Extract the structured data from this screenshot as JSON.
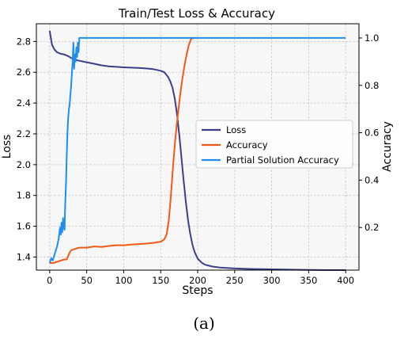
{
  "chart_data": {
    "type": "line",
    "title": "Train/Test Loss & Accuracy",
    "xlabel": "Steps",
    "ylabel": "Loss",
    "ylabel_right": "Accuracy",
    "xlim": [
      -18,
      418
    ],
    "ylim": [
      1.315,
      2.915
    ],
    "ylim_right": [
      0.02,
      1.06
    ],
    "x_ticks": [
      "0",
      "50",
      "100",
      "150",
      "200",
      "250",
      "300",
      "350",
      "400"
    ],
    "y_ticks": [
      "1.4",
      "1.6",
      "1.8",
      "2.0",
      "2.2",
      "2.4",
      "2.6",
      "2.8"
    ],
    "y_ticks_right": [
      "0.2",
      "0.4",
      "0.6",
      "0.8",
      "1.0"
    ],
    "grid": true,
    "legend_position": "center-right",
    "series": [
      {
        "name": "Loss",
        "axis": "left",
        "color": "#3b3e8c",
        "points": [
          [
            0,
            2.87
          ],
          [
            3,
            2.78
          ],
          [
            6,
            2.75
          ],
          [
            10,
            2.73
          ],
          [
            15,
            2.72
          ],
          [
            20,
            2.715
          ],
          [
            25,
            2.705
          ],
          [
            30,
            2.69
          ],
          [
            35,
            2.68
          ],
          [
            40,
            2.675
          ],
          [
            50,
            2.665
          ],
          [
            60,
            2.655
          ],
          [
            70,
            2.645
          ],
          [
            80,
            2.638
          ],
          [
            90,
            2.635
          ],
          [
            100,
            2.632
          ],
          [
            110,
            2.63
          ],
          [
            120,
            2.628
          ],
          [
            130,
            2.625
          ],
          [
            140,
            2.62
          ],
          [
            150,
            2.61
          ],
          [
            155,
            2.6
          ],
          [
            160,
            2.57
          ],
          [
            163,
            2.54
          ],
          [
            166,
            2.5
          ],
          [
            169,
            2.43
          ],
          [
            172,
            2.33
          ],
          [
            175,
            2.2
          ],
          [
            178,
            2.05
          ],
          [
            181,
            1.9
          ],
          [
            184,
            1.76
          ],
          [
            187,
            1.64
          ],
          [
            190,
            1.55
          ],
          [
            193,
            1.48
          ],
          [
            196,
            1.43
          ],
          [
            200,
            1.39
          ],
          [
            205,
            1.365
          ],
          [
            210,
            1.35
          ],
          [
            220,
            1.338
          ],
          [
            230,
            1.332
          ],
          [
            250,
            1.326
          ],
          [
            275,
            1.322
          ],
          [
            300,
            1.32
          ],
          [
            325,
            1.318
          ],
          [
            350,
            1.316
          ],
          [
            375,
            1.315
          ],
          [
            400,
            1.315
          ]
        ]
      },
      {
        "name": "Accuracy",
        "axis": "right",
        "color": "#f05a14",
        "points": [
          [
            0,
            0.05
          ],
          [
            5,
            0.05
          ],
          [
            10,
            0.055
          ],
          [
            15,
            0.06
          ],
          [
            20,
            0.065
          ],
          [
            23,
            0.065
          ],
          [
            25,
            0.08
          ],
          [
            28,
            0.1
          ],
          [
            30,
            0.105
          ],
          [
            35,
            0.11
          ],
          [
            40,
            0.115
          ],
          [
            50,
            0.115
          ],
          [
            60,
            0.12
          ],
          [
            70,
            0.118
          ],
          [
            80,
            0.122
          ],
          [
            90,
            0.125
          ],
          [
            100,
            0.125
          ],
          [
            110,
            0.128
          ],
          [
            120,
            0.13
          ],
          [
            130,
            0.132
          ],
          [
            140,
            0.135
          ],
          [
            150,
            0.14
          ],
          [
            155,
            0.15
          ],
          [
            158,
            0.17
          ],
          [
            161,
            0.23
          ],
          [
            164,
            0.34
          ],
          [
            167,
            0.47
          ],
          [
            170,
            0.58
          ],
          [
            173,
            0.67
          ],
          [
            176,
            0.75
          ],
          [
            179,
            0.82
          ],
          [
            182,
            0.88
          ],
          [
            185,
            0.93
          ],
          [
            188,
            0.97
          ],
          [
            191,
            0.995
          ],
          [
            194,
            1.0
          ],
          [
            200,
            1.0
          ]
        ]
      },
      {
        "name": "Partial Solution Accuracy",
        "axis": "right",
        "color": "#1f8ef1",
        "points": [
          [
            0,
            0.05
          ],
          [
            2,
            0.07
          ],
          [
            4,
            0.06
          ],
          [
            6,
            0.08
          ],
          [
            8,
            0.1
          ],
          [
            10,
            0.12
          ],
          [
            12,
            0.15
          ],
          [
            14,
            0.2
          ],
          [
            15,
            0.17
          ],
          [
            16,
            0.22
          ],
          [
            17,
            0.18
          ],
          [
            18,
            0.24
          ],
          [
            19,
            0.2
          ],
          [
            20,
            0.19
          ],
          [
            21,
            0.3
          ],
          [
            22,
            0.38
          ],
          [
            23,
            0.5
          ],
          [
            24,
            0.6
          ],
          [
            25,
            0.66
          ],
          [
            26,
            0.7
          ],
          [
            27,
            0.72
          ],
          [
            28,
            0.76
          ],
          [
            29,
            0.8
          ],
          [
            30,
            0.85
          ],
          [
            31,
            0.9
          ],
          [
            32,
            0.98
          ],
          [
            33,
            0.87
          ],
          [
            34,
            0.93
          ],
          [
            35,
            0.9
          ],
          [
            36,
            0.96
          ],
          [
            37,
            0.92
          ],
          [
            38,
            0.98
          ],
          [
            39,
            0.94
          ],
          [
            40,
            1.0
          ],
          [
            60,
            1.0
          ],
          [
            100,
            1.0
          ],
          [
            200,
            1.0
          ],
          [
            300,
            1.0
          ],
          [
            400,
            1.0
          ]
        ]
      }
    ]
  },
  "caption": "(a)"
}
